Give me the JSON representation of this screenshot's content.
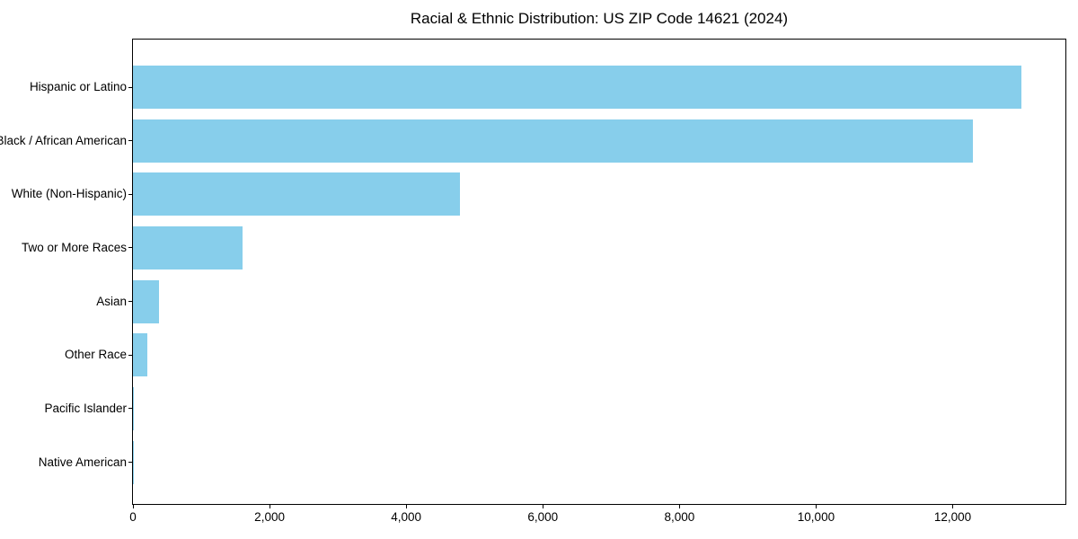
{
  "chart_data": {
    "type": "bar",
    "orientation": "horizontal",
    "title": "Racial & Ethnic Distribution: US ZIP Code 14621 (2024)",
    "categories": [
      "Hispanic or Latino",
      "Black / African American",
      "White (Non-Hispanic)",
      "Two or More Races",
      "Asian",
      "Other Race",
      "Pacific Islander",
      "Native American"
    ],
    "values": [
      13000,
      12300,
      4790,
      1610,
      385,
      210,
      15,
      10
    ],
    "xlabel": "",
    "ylabel": "",
    "xlim": [
      0,
      13650
    ],
    "xticks": [
      0,
      2000,
      4000,
      6000,
      8000,
      10000,
      12000
    ],
    "xtick_labels": [
      "0",
      "2,000",
      "4,000",
      "6,000",
      "8,000",
      "10,000",
      "12,000"
    ],
    "bar_color": "#87CEEB",
    "axis_color": "#000000",
    "grid": false,
    "legend": "none"
  }
}
